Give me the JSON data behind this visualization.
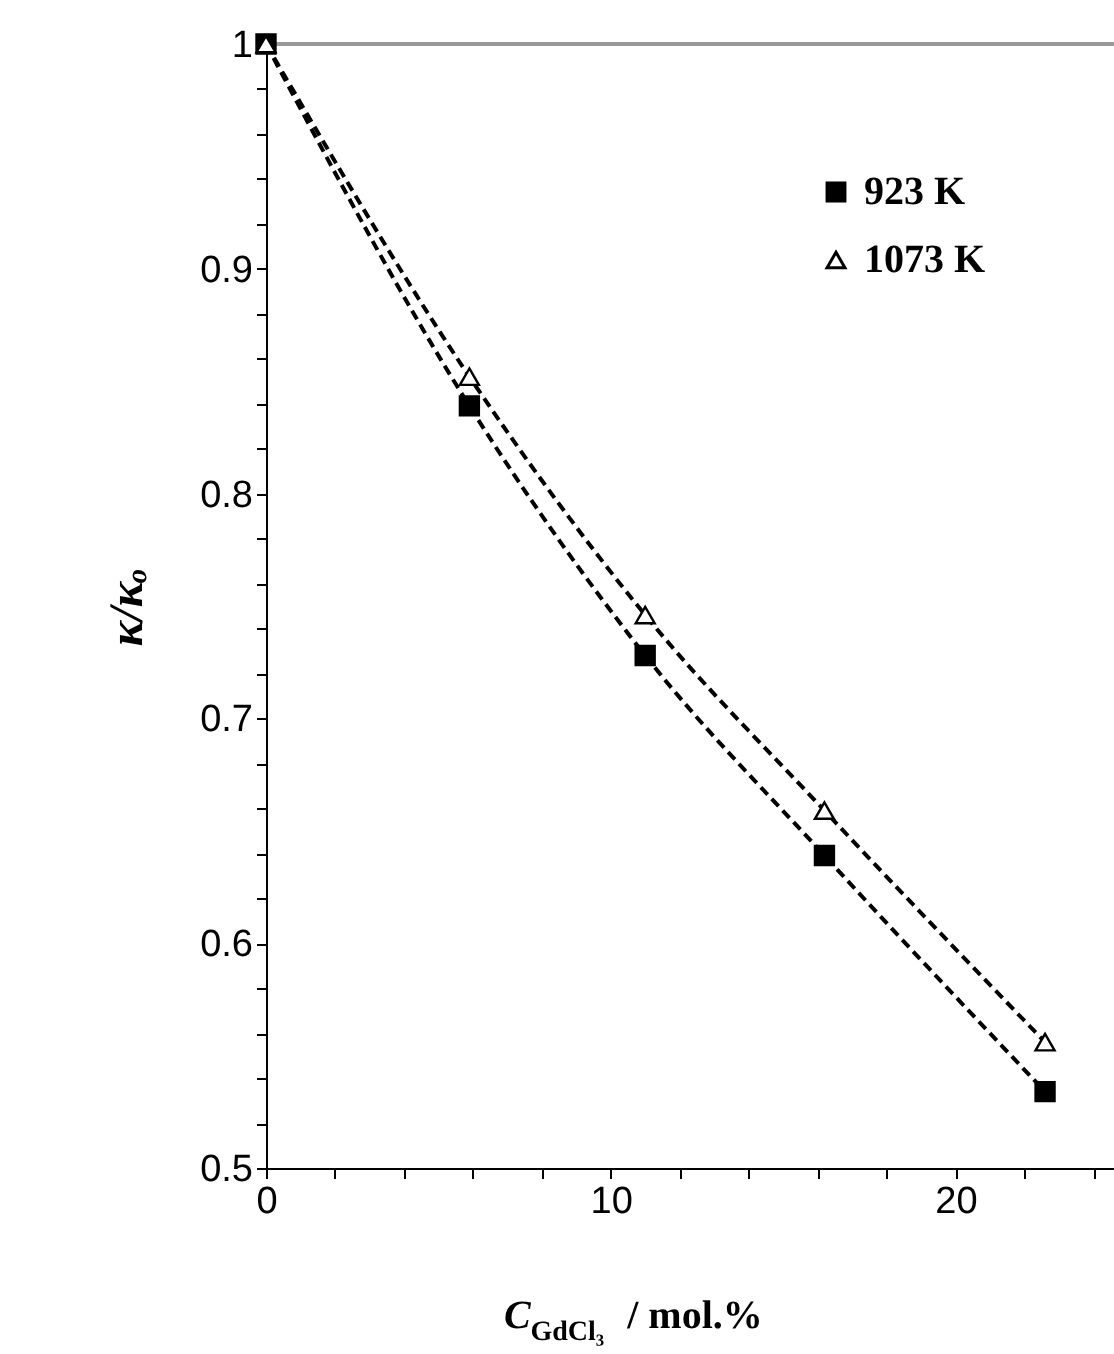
{
  "chart_data": {
    "type": "line",
    "xlabel": "C$_{GdCl₃}$ / mol.%",
    "ylabel": "κ/κₒ",
    "xlim": [
      0,
      24.6
    ],
    "ylim": [
      0.5,
      1
    ],
    "xticks": [
      0,
      {
        "value": 2,
        "label": null
      },
      {
        "value": 4,
        "label": null
      },
      {
        "value": 6,
        "label": null
      },
      {
        "value": 8,
        "label": null
      },
      10,
      {
        "value": 12,
        "label": null
      },
      {
        "value": 14,
        "label": null
      },
      {
        "value": 16,
        "label": null
      },
      {
        "value": 18,
        "label": null
      },
      20,
      {
        "value": 22,
        "label": null
      },
      {
        "value": 24,
        "label": null
      }
    ],
    "yticks": [
      0.5,
      {
        "value": 0.52,
        "label": null
      },
      {
        "value": 0.54,
        "label": null
      },
      {
        "value": 0.56,
        "label": null
      },
      {
        "value": 0.58,
        "label": null
      },
      0.6,
      {
        "value": 0.62,
        "label": null
      },
      {
        "value": 0.64,
        "label": null
      },
      {
        "value": 0.66,
        "label": null
      },
      {
        "value": 0.68,
        "label": null
      },
      0.7,
      {
        "value": 0.72,
        "label": null
      },
      {
        "value": 0.74,
        "label": null
      },
      {
        "value": 0.76,
        "label": null
      },
      {
        "value": 0.78,
        "label": null
      },
      0.8,
      {
        "value": 0.82,
        "label": null
      },
      {
        "value": 0.84,
        "label": null
      },
      {
        "value": 0.86,
        "label": null
      },
      {
        "value": 0.88,
        "label": null
      },
      0.9,
      {
        "value": 0.92,
        "label": null
      },
      {
        "value": 0.94,
        "label": null
      },
      {
        "value": 0.96,
        "label": null
      },
      {
        "value": 0.98,
        "label": null
      },
      1
    ],
    "series": [
      {
        "name": "923 K",
        "color": "#000000",
        "marker": "square",
        "x": [
          0,
          5.9,
          11.0,
          16.2,
          22.6
        ],
        "values": [
          1,
          0.839,
          0.728,
          0.639,
          0.534
        ]
      },
      {
        "name": "1073 K",
        "color": "#000000",
        "marker": "triangle",
        "x": [
          0,
          5.9,
          11.0,
          16.2,
          22.6
        ],
        "values": [
          1,
          0.852,
          0.746,
          0.659,
          0.556
        ]
      }
    ],
    "line_style": "dashed",
    "legend": "top right",
    "grid": false,
    "ref_lines": [
      {
        "axis": "y",
        "value": 1,
        "color": "#999999"
      }
    ]
  }
}
